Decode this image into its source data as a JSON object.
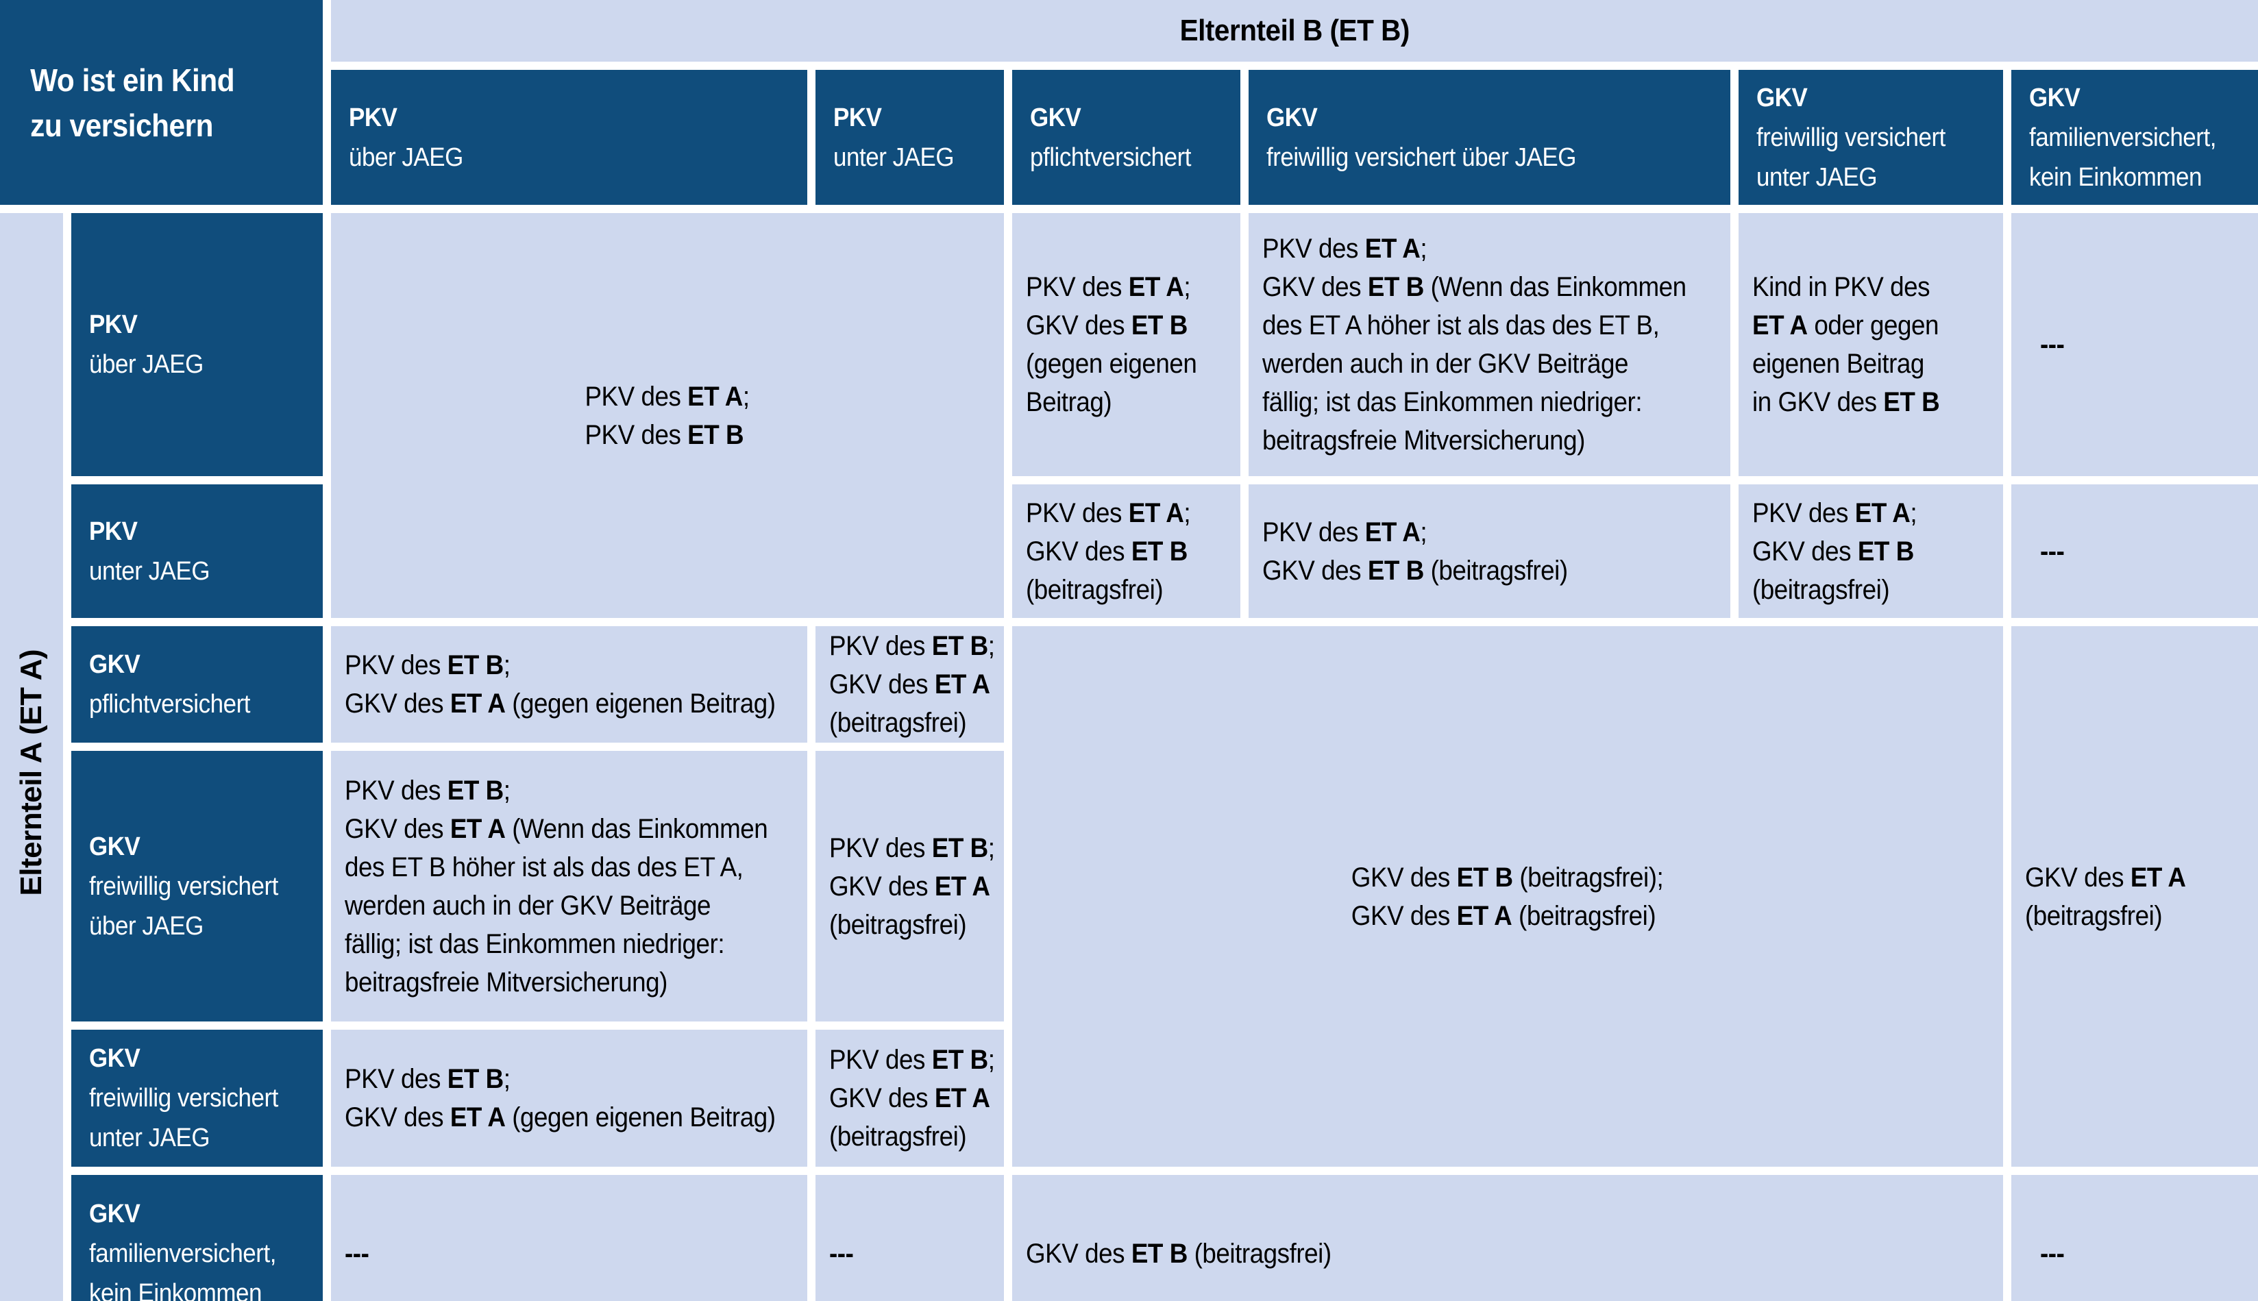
{
  "colors": {
    "dark_blue": "#104d7c",
    "light_blue": "#ced8ee",
    "gutter_white": "#ffffff",
    "text_on_dark": "#ffffff",
    "text_on_light": "#000000"
  },
  "corner_title": [
    [
      "Wo ist ein Kind\nzu versichern",
      1
    ]
  ],
  "top_axis_label": [
    [
      "Elternteil B (ET B)",
      1
    ]
  ],
  "left_axis_label": [
    [
      "Elternteil A (ET A)",
      1
    ]
  ],
  "column_headers": [
    [
      [
        "PKV",
        1
      ],
      [
        "\nüber JAEG",
        0
      ]
    ],
    [
      [
        "PKV",
        1
      ],
      [
        "\nunter JAEG",
        0
      ]
    ],
    [
      [
        "GKV",
        1
      ],
      [
        "\npflichtversichert",
        0
      ]
    ],
    [
      [
        "GKV",
        1
      ],
      [
        "\nfreiwillig versichert über JAEG",
        0
      ]
    ],
    [
      [
        "GKV",
        1
      ],
      [
        "\nfreiwillig versichert\nunter JAEG",
        0
      ]
    ],
    [
      [
        "GKV",
        1
      ],
      [
        "\nfamilienversichert,\nkein Einkommen",
        0
      ]
    ]
  ],
  "row_headers": [
    [
      [
        "PKV",
        1
      ],
      [
        "\nüber JAEG",
        0
      ]
    ],
    [
      [
        "PKV",
        1
      ],
      [
        "\nunter JAEG",
        0
      ]
    ],
    [
      [
        "GKV",
        1
      ],
      [
        "\npflichtversichert",
        0
      ]
    ],
    [
      [
        "GKV",
        1
      ],
      [
        "\nfreiwillig versichert\nüber JAEG",
        0
      ]
    ],
    [
      [
        "GKV",
        1
      ],
      [
        "\nfreiwillig versichert\nunter JAEG",
        0
      ]
    ],
    [
      [
        "GKV",
        1
      ],
      [
        "\nfamilienversichert,\nkein Einkommen",
        0
      ]
    ]
  ],
  "cells": {
    "merged_pkv_both": [
      [
        "PKV des ",
        0
      ],
      [
        "ET A",
        1
      ],
      [
        ";\nPKV des ",
        0
      ],
      [
        "ET B",
        1
      ]
    ],
    "r1c3": [
      [
        "PKV des ",
        0
      ],
      [
        "ET A",
        1
      ],
      [
        ";\nGKV des ",
        0
      ],
      [
        "ET B",
        1
      ],
      [
        "\n(gegen eigenen\nBeitrag)",
        0
      ]
    ],
    "r1c4": [
      [
        "PKV des ",
        0
      ],
      [
        "ET A",
        1
      ],
      [
        ";\nGKV des ",
        0
      ],
      [
        "ET B",
        1
      ],
      [
        " (Wenn das Einkommen\ndes ET A höher ist als das des ET B,\nwerden auch in der GKV Beiträge\nfällig; ist das Einkommen niedriger:\nbeitragsfreie Mitversicherung)",
        0
      ]
    ],
    "r1c5": [
      [
        "Kind in PKV des\n",
        0
      ],
      [
        "ET A",
        1
      ],
      [
        " oder gegen\neigenen Beitrag\nin GKV des ",
        0
      ],
      [
        "ET B",
        1
      ]
    ],
    "r1c6": [
      [
        "---",
        1
      ]
    ],
    "r2c3": [
      [
        "PKV des ",
        0
      ],
      [
        "ET A",
        1
      ],
      [
        ";\nGKV des ",
        0
      ],
      [
        "ET B",
        1
      ],
      [
        "\n(beitragsfrei)",
        0
      ]
    ],
    "r2c4": [
      [
        "PKV des ",
        0
      ],
      [
        "ET A",
        1
      ],
      [
        ";\nGKV des ",
        0
      ],
      [
        "ET B",
        1
      ],
      [
        " (beitragsfrei)",
        0
      ]
    ],
    "r2c5": [
      [
        "PKV des ",
        0
      ],
      [
        "ET A",
        1
      ],
      [
        ";\nGKV des ",
        0
      ],
      [
        "ET B",
        1
      ],
      [
        "\n(beitragsfrei)",
        0
      ]
    ],
    "r2c6": [
      [
        "---",
        1
      ]
    ],
    "r3c1": [
      [
        "PKV des ",
        0
      ],
      [
        "ET B",
        1
      ],
      [
        ";\nGKV des ",
        0
      ],
      [
        "ET A",
        1
      ],
      [
        " (gegen eigenen Beitrag)",
        0
      ]
    ],
    "r3c2": [
      [
        "PKV des ",
        0
      ],
      [
        "ET B",
        1
      ],
      [
        ";\nGKV des ",
        0
      ],
      [
        "ET A",
        1
      ],
      [
        "\n(beitragsfrei)",
        0
      ]
    ],
    "merged_gkv_both": [
      [
        "GKV des ",
        0
      ],
      [
        "ET B",
        1
      ],
      [
        " (beitragsfrei);\nGKV des ",
        0
      ],
      [
        "ET A",
        1
      ],
      [
        " (beitragsfrei)",
        0
      ]
    ],
    "merged_gkv_a": [
      [
        "GKV des ",
        0
      ],
      [
        "ET A",
        1
      ],
      [
        "\n(beitragsfrei)",
        0
      ]
    ],
    "r4c1": [
      [
        "PKV des ",
        0
      ],
      [
        "ET B",
        1
      ],
      [
        ";\nGKV des ",
        0
      ],
      [
        "ET A",
        1
      ],
      [
        " (Wenn das Einkommen\ndes ET B höher ist als das des ET A,\nwerden auch in der GKV Beiträge\nfällig; ist das Einkommen niedriger:\nbeitragsfreie Mitversicherung)",
        0
      ]
    ],
    "r4c2": [
      [
        "PKV des ",
        0
      ],
      [
        "ET B",
        1
      ],
      [
        ";\nGKV des ",
        0
      ],
      [
        "ET A",
        1
      ],
      [
        "\n(beitragsfrei)",
        0
      ]
    ],
    "r5c1": [
      [
        "PKV des ",
        0
      ],
      [
        "ET B",
        1
      ],
      [
        ";\nGKV des ",
        0
      ],
      [
        "ET A",
        1
      ],
      [
        " (gegen eigenen Beitrag)",
        0
      ]
    ],
    "r5c2": [
      [
        "PKV des ",
        0
      ],
      [
        "ET B",
        1
      ],
      [
        ";\nGKV des ",
        0
      ],
      [
        "ET A",
        1
      ],
      [
        "\n(beitragsfrei)",
        0
      ]
    ],
    "r6c1": [
      [
        "---",
        1
      ]
    ],
    "r6c2": [
      [
        "---",
        1
      ]
    ],
    "r6_merged": [
      [
        "GKV des ",
        0
      ],
      [
        "ET B",
        1
      ],
      [
        " (beitragsfrei)",
        0
      ]
    ],
    "r6c6": [
      [
        "---",
        1
      ]
    ]
  }
}
